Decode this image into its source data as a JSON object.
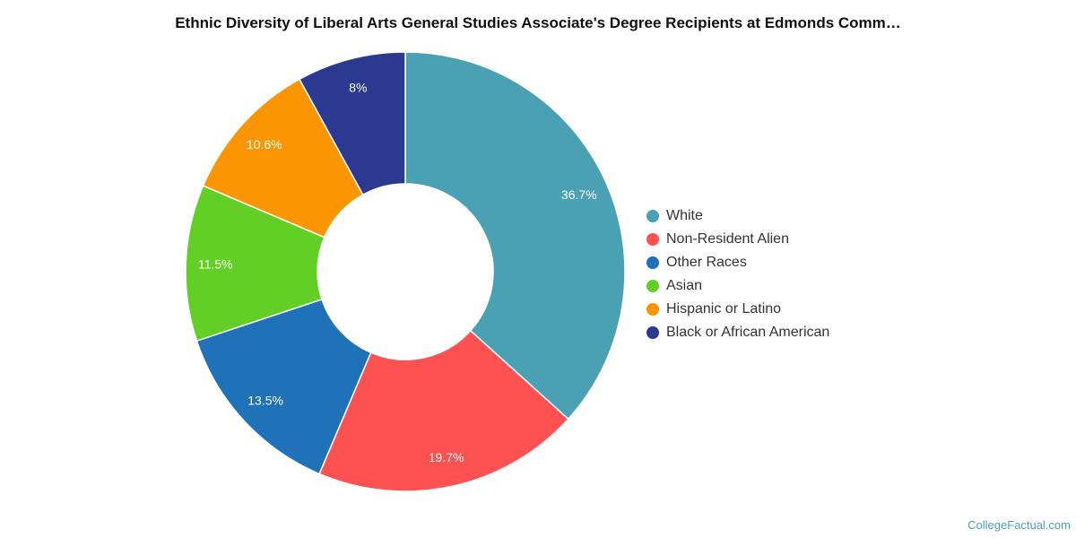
{
  "chart_data": {
    "type": "pie",
    "title": "Ethnic Diversity of Liberal Arts General Studies Associate's Degree Recipients at Edmonds Comm…",
    "donut": true,
    "legend_position": "right",
    "slices": [
      {
        "name": "White",
        "value": 36.7,
        "label": "36.7%",
        "color": "#4aa1b3"
      },
      {
        "name": "Non-Resident Alien",
        "value": 19.7,
        "label": "19.7%",
        "color": "#fe5152"
      },
      {
        "name": "Other Races",
        "value": 13.5,
        "label": "13.5%",
        "color": "#1f72b8"
      },
      {
        "name": "Asian",
        "value": 11.5,
        "label": "11.5%",
        "color": "#62cf24"
      },
      {
        "name": "Hispanic or Latino",
        "value": 10.6,
        "label": "10.6%",
        "color": "#fb9502"
      },
      {
        "name": "Black or African American",
        "value": 8.0,
        "label": "8%",
        "color": "#2c3990"
      }
    ]
  },
  "watermark": "CollegeFactual.com"
}
